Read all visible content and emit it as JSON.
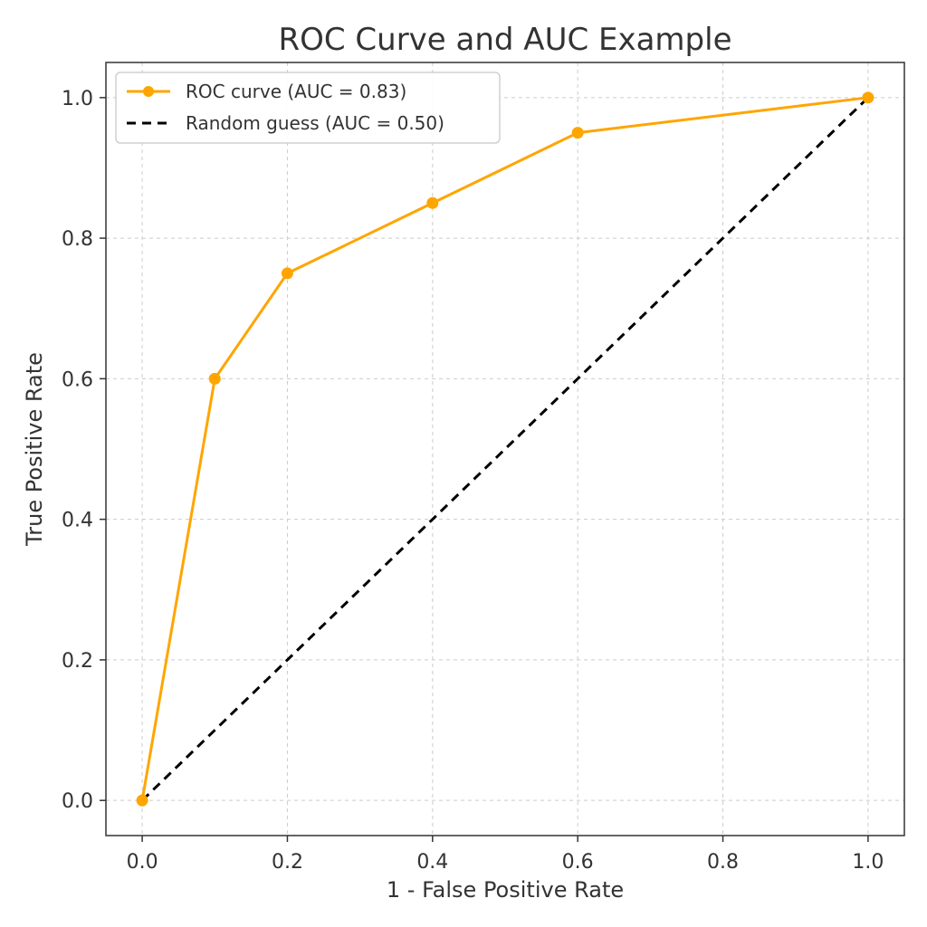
{
  "chart_data": {
    "type": "line",
    "title": "ROC Curve and AUC Example",
    "xlabel": "1 - False Positive Rate",
    "ylabel": "True Positive Rate",
    "xlim": [
      -0.05,
      1.05
    ],
    "ylim": [
      -0.05,
      1.05
    ],
    "x_ticks": [
      0.0,
      0.2,
      0.4,
      0.6,
      0.8,
      1.0
    ],
    "y_ticks": [
      0.0,
      0.2,
      0.4,
      0.6,
      0.8,
      1.0
    ],
    "x_tick_labels": [
      "0.0",
      "0.2",
      "0.4",
      "0.6",
      "0.8",
      "1.0"
    ],
    "y_tick_labels": [
      "0.0",
      "0.2",
      "0.4",
      "0.6",
      "0.8",
      "1.0"
    ],
    "grid": true,
    "legend_position": "top-left",
    "series": [
      {
        "name": "ROC curve (AUC = 0.83)",
        "style": "solid-with-markers",
        "color": "#FFA500",
        "x": [
          0.0,
          0.1,
          0.2,
          0.4,
          0.6,
          1.0
        ],
        "y": [
          0.0,
          0.6,
          0.75,
          0.85,
          0.95,
          1.0
        ]
      },
      {
        "name": "Random guess (AUC = 0.50)",
        "style": "dashed",
        "color": "#000000",
        "x": [
          0.0,
          1.0
        ],
        "y": [
          0.0,
          1.0
        ]
      }
    ]
  }
}
